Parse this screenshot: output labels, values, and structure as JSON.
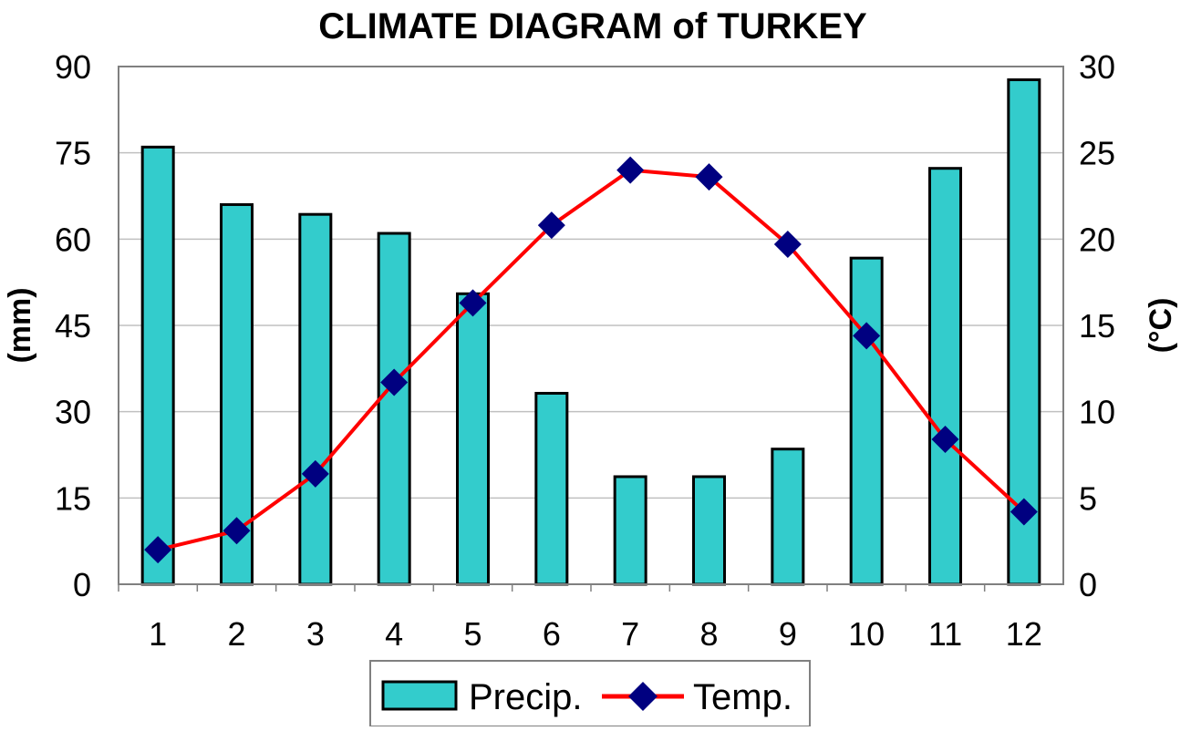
{
  "chart_data": {
    "type": "bar+line",
    "title": "CLIMATE DIAGRAM of TURKEY",
    "categories": [
      "1",
      "2",
      "3",
      "4",
      "5",
      "6",
      "7",
      "8",
      "9",
      "10",
      "11",
      "12"
    ],
    "ylabel_left": "(mm)",
    "ylabel_right": "(°C)",
    "ylim_left": [
      0,
      90
    ],
    "ylim_right": [
      0,
      30
    ],
    "yticks_left": [
      "0",
      "15",
      "30",
      "45",
      "60",
      "75",
      "90"
    ],
    "yticks_right": [
      "0",
      "5",
      "10",
      "15",
      "20",
      "25",
      "30"
    ],
    "grid": true,
    "legend_position": "bottom",
    "series": [
      {
        "name": "Precip.",
        "type": "bar",
        "axis": "left",
        "color": "#33CCCC",
        "values": [
          76,
          66,
          64.3,
          61,
          50.5,
          33.2,
          18.7,
          18.7,
          23.5,
          56.7,
          72.3,
          87.7
        ]
      },
      {
        "name": "Temp.",
        "type": "line",
        "axis": "right",
        "color": "#FF0000",
        "marker_color": "#000080",
        "values": [
          2.0,
          3.1,
          6.4,
          11.7,
          16.3,
          20.8,
          24.0,
          23.6,
          19.7,
          14.4,
          8.4,
          4.2
        ]
      }
    ]
  }
}
